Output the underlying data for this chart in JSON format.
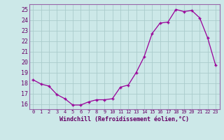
{
  "x": [
    0,
    1,
    2,
    3,
    4,
    5,
    6,
    7,
    8,
    9,
    10,
    11,
    12,
    13,
    14,
    15,
    16,
    17,
    18,
    19,
    20,
    21,
    22,
    23
  ],
  "y": [
    18.3,
    17.9,
    17.7,
    16.9,
    16.5,
    15.9,
    15.9,
    16.2,
    16.4,
    16.4,
    16.5,
    17.6,
    17.8,
    19.0,
    20.5,
    22.7,
    23.7,
    23.8,
    25.0,
    24.8,
    24.9,
    24.2,
    22.3,
    19.7
  ],
  "xlim": [
    -0.5,
    23.5
  ],
  "ylim": [
    15.5,
    25.5
  ],
  "yticks": [
    16,
    17,
    18,
    19,
    20,
    21,
    22,
    23,
    24,
    25
  ],
  "xticks": [
    0,
    1,
    2,
    3,
    4,
    5,
    6,
    7,
    8,
    9,
    10,
    11,
    12,
    13,
    14,
    15,
    16,
    17,
    18,
    19,
    20,
    21,
    22,
    23
  ],
  "xlabel": "Windchill (Refroidissement éolien,°C)",
  "line_color": "#990099",
  "marker": "+",
  "bg_color": "#cce8e8",
  "grid_color": "#aacccc",
  "label_color": "#660066",
  "spine_color": "#9966aa"
}
